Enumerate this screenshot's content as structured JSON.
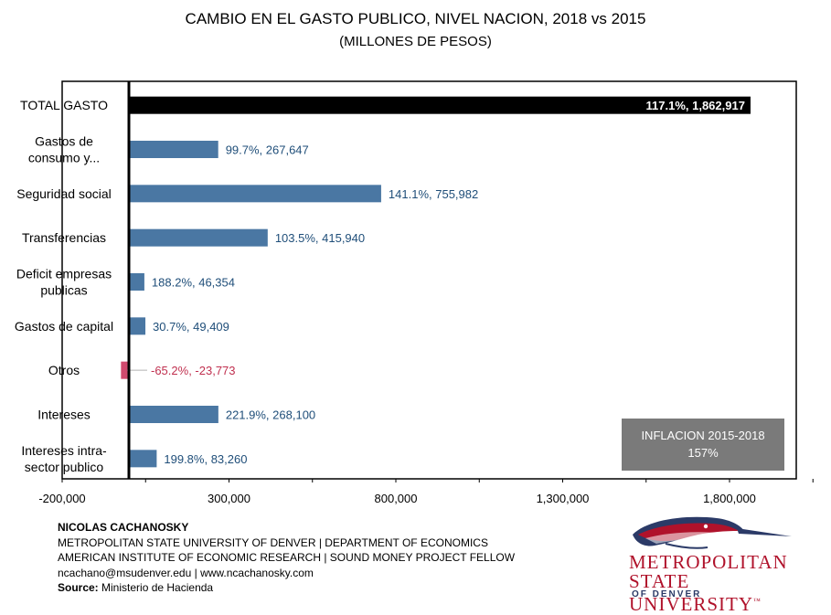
{
  "title": "CAMBIO EN EL GASTO PUBLICO, NIVEL NACION, 2018 vs 2015",
  "subtitle": "(MILLONES DE PESOS)",
  "chart_data": {
    "type": "bar",
    "orientation": "horizontal",
    "title": "CAMBIO EN EL GASTO PUBLICO, NIVEL NACION, 2018 vs 2015",
    "subtitle": "(MILLONES DE PESOS)",
    "xlim": [
      -200000,
      2000000
    ],
    "xticks": [
      -200000,
      300000,
      800000,
      1300000,
      1800000
    ],
    "xtick_labels": [
      "-200,000",
      "300,000",
      "800,000",
      "1,300,000",
      "1,800,000"
    ],
    "categories": [
      {
        "label": [
          "TOTAL GASTO"
        ],
        "value": 1862917,
        "pct": "117.1%",
        "data_label": "117.1%, 1,862,917",
        "color": "#000000",
        "label_color": "#ffffff"
      },
      {
        "label": [
          "Gastos de",
          "consumo y..."
        ],
        "value": 267647,
        "pct": "99.7%",
        "data_label": "99.7%, 267,647",
        "color": "#4a77a3",
        "label_color": "#1f4e79"
      },
      {
        "label": [
          "Seguridad social"
        ],
        "value": 755982,
        "pct": "141.1%",
        "data_label": "141.1%, 755,982",
        "color": "#4a77a3",
        "label_color": "#1f4e79"
      },
      {
        "label": [
          "Transferencias"
        ],
        "value": 415940,
        "pct": "103.5%",
        "data_label": "103.5%, 415,940",
        "color": "#4a77a3",
        "label_color": "#1f4e79"
      },
      {
        "label": [
          "Deficit empresas",
          "publicas"
        ],
        "value": 46354,
        "pct": "188.2%",
        "data_label": "188.2%, 46,354",
        "color": "#4a77a3",
        "label_color": "#1f4e79"
      },
      {
        "label": [
          "Gastos de capital"
        ],
        "value": 49409,
        "pct": "30.7%",
        "data_label": "30.7%, 49,409",
        "color": "#4a77a3",
        "label_color": "#1f4e79"
      },
      {
        "label": [
          "Otros"
        ],
        "value": -23773,
        "pct": "-65.2%",
        "data_label": "-65.2%, -23,773",
        "color": "#d04a6e",
        "label_color": "#c0304f"
      },
      {
        "label": [
          "Intereses"
        ],
        "value": 268100,
        "pct": "221.9%",
        "data_label": "221.9%, 268,100",
        "color": "#4a77a3",
        "label_color": "#1f4e79"
      },
      {
        "label": [
          "Intereses intra-",
          "sector publico"
        ],
        "value": 83260,
        "pct": "199.8%",
        "data_label": "199.8%, 83,260",
        "color": "#4a77a3",
        "label_color": "#1f4e79"
      }
    ],
    "annotation": {
      "line1": "INFLACION 2015-2018",
      "line2": "157%"
    }
  },
  "footer": {
    "author": "NICOLAS CACHANOSKY",
    "line2": "METROPOLITAN STATE UNIVERSITY OF DENVER | DEPARTMENT OF ECONOMICS",
    "line3": "AMERICAN INSTITUTE OF ECONOMIC RESEARCH | SOUND MONEY PROJECT FELLOW",
    "line4": "ncachano@msudenver.edu  | www.ncachanosky.com",
    "source_label": "Source:",
    "source_value": " Ministerio de Hacienda"
  },
  "logo": {
    "line1": "METROPOLITAN",
    "line2": "STATE UNIVERSITY",
    "tm": "™",
    "line3": "OF DENVER",
    "primary_color": "#b0122b",
    "secondary_color": "#2b3a67"
  }
}
